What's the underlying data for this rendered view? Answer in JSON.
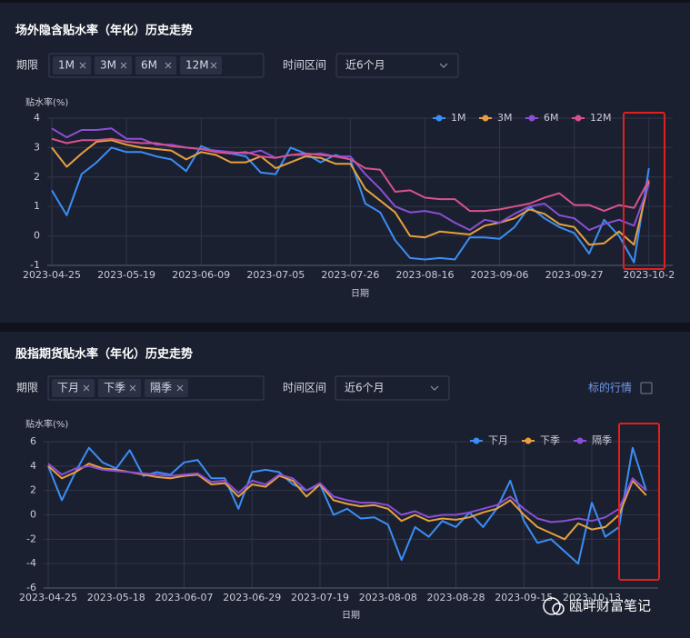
{
  "controls": [
    {
      "term_label": "期限",
      "tags": [
        "1M",
        "3M",
        "6M",
        "12M"
      ],
      "range_label": "时间区间",
      "range_value": "近6个月"
    },
    {
      "term_label": "期限",
      "tags": [
        "下月",
        "下季",
        "隔季"
      ],
      "range_label": "时间区间",
      "range_value": "近6个月",
      "link": "标的行情"
    }
  ],
  "watermark": "瓯畔财富笔记",
  "chart_data": [
    {
      "type": "line",
      "title": "场外隐含贴水率（年化）历史走势",
      "y_label": "贴水率(%)",
      "x_label": "日期",
      "categories": [
        "2023-04-25",
        null,
        null,
        null,
        null,
        "2023-05-19",
        null,
        null,
        null,
        null,
        "2023-06-09",
        null,
        null,
        null,
        null,
        "2023-07-05",
        null,
        null,
        null,
        null,
        "2023-07-26",
        null,
        null,
        null,
        null,
        "2023-08-16",
        null,
        null,
        null,
        null,
        "2023-09-06",
        null,
        null,
        null,
        null,
        "2023-09-27",
        null,
        null,
        null,
        null,
        "2023-10-2"
      ],
      "series": [
        {
          "name": "1M",
          "color": "#3a8ef6",
          "values": [
            1.55,
            0.7,
            2.1,
            2.5,
            3.0,
            2.85,
            2.85,
            2.7,
            2.6,
            2.2,
            3.05,
            2.85,
            2.8,
            2.7,
            2.15,
            2.1,
            3.0,
            2.8,
            2.5,
            2.75,
            2.6,
            1.1,
            0.8,
            -0.15,
            -0.75,
            -0.8,
            -0.75,
            -0.8,
            -0.05,
            -0.05,
            -0.1,
            0.3,
            1.0,
            0.6,
            0.3,
            0.1,
            -0.6,
            0.55,
            0.0,
            -0.9,
            2.3
          ]
        },
        {
          "name": "3M",
          "color": "#e8a03e",
          "values": [
            3.0,
            2.35,
            2.8,
            3.2,
            3.25,
            3.1,
            3.0,
            2.95,
            2.9,
            2.6,
            2.85,
            2.75,
            2.5,
            2.5,
            2.7,
            2.3,
            2.5,
            2.7,
            2.65,
            2.45,
            2.45,
            1.6,
            1.2,
            0.8,
            0.0,
            -0.05,
            0.15,
            0.1,
            0.05,
            0.35,
            0.45,
            0.6,
            0.9,
            0.75,
            0.4,
            0.3,
            -0.3,
            -0.25,
            0.15,
            -0.3,
            1.85
          ]
        },
        {
          "name": "6M",
          "color": "#8a4fd6",
          "values": [
            3.65,
            3.35,
            3.6,
            3.6,
            3.65,
            3.3,
            3.3,
            3.1,
            3.1,
            3.0,
            2.95,
            2.9,
            2.85,
            2.8,
            2.9,
            2.65,
            2.75,
            2.75,
            2.8,
            2.7,
            2.7,
            2.1,
            1.6,
            1.0,
            0.8,
            0.85,
            0.75,
            0.45,
            0.2,
            0.55,
            0.45,
            0.75,
            1.0,
            1.1,
            0.7,
            0.6,
            0.2,
            0.4,
            0.55,
            0.35,
            1.75
          ]
        },
        {
          "name": "12M",
          "color": "#d9528f",
          "values": [
            3.3,
            3.15,
            3.25,
            3.25,
            3.3,
            3.2,
            3.15,
            3.15,
            3.05,
            3.0,
            2.95,
            2.85,
            2.8,
            2.85,
            2.7,
            2.65,
            2.75,
            2.8,
            2.75,
            2.7,
            2.6,
            2.3,
            2.25,
            1.5,
            1.55,
            1.3,
            1.25,
            1.25,
            0.85,
            0.85,
            0.9,
            1.0,
            1.1,
            1.3,
            1.45,
            1.05,
            1.05,
            0.85,
            1.05,
            0.95,
            1.9
          ]
        }
      ],
      "ylim": [
        -1,
        4
      ],
      "yticks": [
        -1,
        0,
        1,
        2,
        3,
        4
      ],
      "grid": true,
      "legend": "top-right"
    },
    {
      "type": "line",
      "title": "股指期货贴水率（年化）历史走势",
      "y_label": "贴水率(%)",
      "x_label": "日期",
      "categories": [
        "2023-04-25",
        null,
        null,
        null,
        null,
        "2023-05-18",
        null,
        null,
        null,
        null,
        "2023-06-07",
        null,
        null,
        null,
        null,
        "2023-06-29",
        null,
        null,
        null,
        null,
        "2023-07-19",
        null,
        null,
        null,
        null,
        "2023-08-08",
        null,
        null,
        null,
        null,
        "2023-08-28",
        null,
        null,
        null,
        null,
        "2023-09-15",
        null,
        null,
        null,
        null,
        "2023-10-13",
        null,
        null,
        null,
        null
      ],
      "series": [
        {
          "name": "下月",
          "color": "#3a8ef6",
          "values": [
            4.0,
            1.2,
            3.5,
            5.5,
            4.3,
            3.8,
            5.3,
            3.2,
            3.5,
            3.3,
            4.3,
            4.5,
            3.0,
            3.0,
            0.5,
            3.5,
            3.7,
            3.5,
            2.5,
            2.0,
            2.5,
            0.0,
            0.5,
            -0.3,
            -0.2,
            -0.8,
            -3.7,
            -1.0,
            -1.8,
            -0.5,
            -1.0,
            0.2,
            -1.0,
            0.5,
            2.8,
            -0.5,
            -2.3,
            -2.0,
            -3.0,
            -4.0,
            1.0,
            -1.8,
            -1.0,
            5.5,
            2.0
          ]
        },
        {
          "name": "下季",
          "color": "#e8a03e",
          "values": [
            4.0,
            3.0,
            3.5,
            4.2,
            3.8,
            3.7,
            3.5,
            3.3,
            3.1,
            3.0,
            3.2,
            3.3,
            2.5,
            2.6,
            1.5,
            2.5,
            2.3,
            3.2,
            2.8,
            1.5,
            2.5,
            1.2,
            0.9,
            0.7,
            0.8,
            0.5,
            -0.5,
            0.0,
            -0.5,
            -0.3,
            -0.4,
            -0.2,
            0.2,
            0.5,
            1.2,
            0.0,
            -1.0,
            -1.5,
            -2.0,
            -0.7,
            -1.2,
            -1.0,
            0.0,
            2.8,
            1.6
          ]
        },
        {
          "name": "隔季",
          "color": "#8a4fd6",
          "values": [
            4.2,
            3.3,
            3.8,
            4.0,
            3.7,
            3.6,
            3.5,
            3.4,
            3.3,
            3.2,
            3.3,
            3.4,
            2.7,
            2.8,
            1.8,
            2.8,
            2.5,
            3.3,
            3.0,
            2.0,
            2.6,
            1.5,
            1.2,
            1.0,
            1.0,
            0.8,
            0.0,
            0.3,
            -0.2,
            0.0,
            0.0,
            0.2,
            0.5,
            0.8,
            1.5,
            0.5,
            -0.3,
            -0.6,
            -0.5,
            -0.3,
            -0.5,
            -0.2,
            0.5,
            3.0,
            2.0
          ]
        }
      ],
      "ylim": [
        -6,
        6
      ],
      "yticks": [
        -6,
        -4,
        -2,
        0,
        2,
        4,
        6
      ],
      "grid": true,
      "legend": "top-right"
    }
  ]
}
